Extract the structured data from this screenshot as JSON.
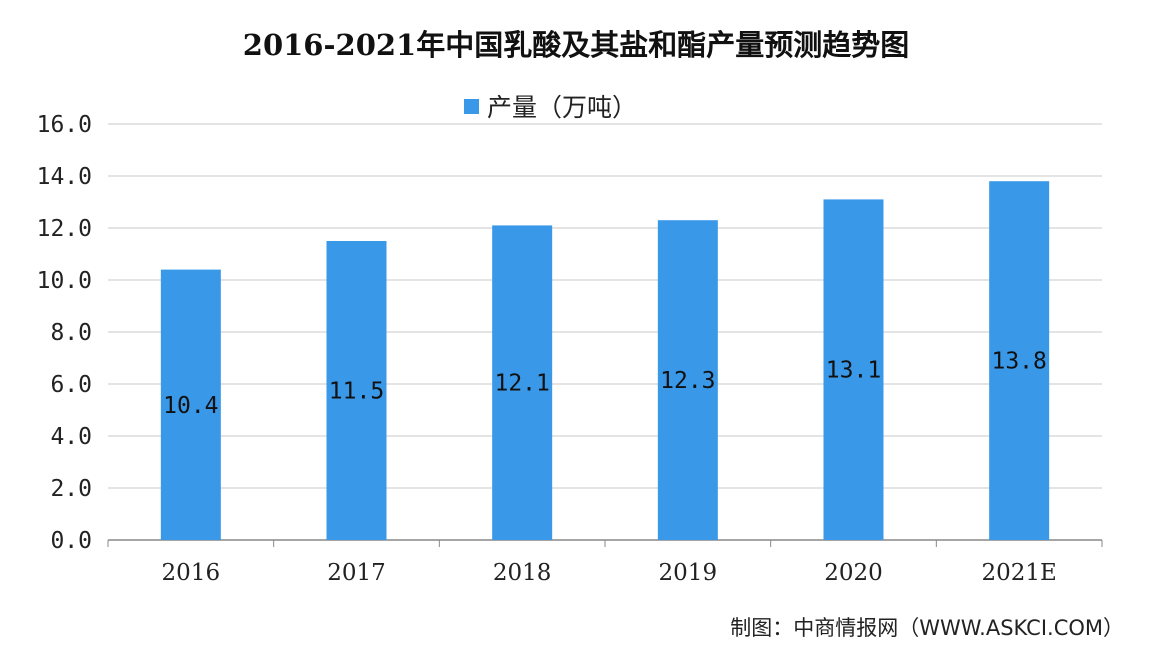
{
  "chart_data": {
    "type": "bar",
    "title": "2016-2021年中国乳酸及其盐和酯产量预测趋势图",
    "categories": [
      "2016",
      "2017",
      "2018",
      "2019",
      "2020",
      "2021E"
    ],
    "series": [
      {
        "name": "产量（万吨）",
        "values": [
          10.4,
          11.5,
          12.1,
          12.3,
          13.1,
          13.8
        ],
        "color": "#3a98e8"
      }
    ],
    "data_labels": [
      "10.4",
      "11.5",
      "12.1",
      "12.3",
      "13.1",
      "13.8"
    ],
    "y_tick_labels": [
      "0.0",
      "2.0",
      "4.0",
      "6.0",
      "8.0",
      "10.0",
      "12.0",
      "14.0",
      "16.0"
    ],
    "ylim": [
      0,
      16
    ],
    "grid": true,
    "legend_position": "top-center"
  },
  "source": "制图：中商情报网（WWW.ASKCI.COM）",
  "colors": {
    "bar": "#3a98e8",
    "grid": "#c8c8c8",
    "axis": "#888888"
  }
}
